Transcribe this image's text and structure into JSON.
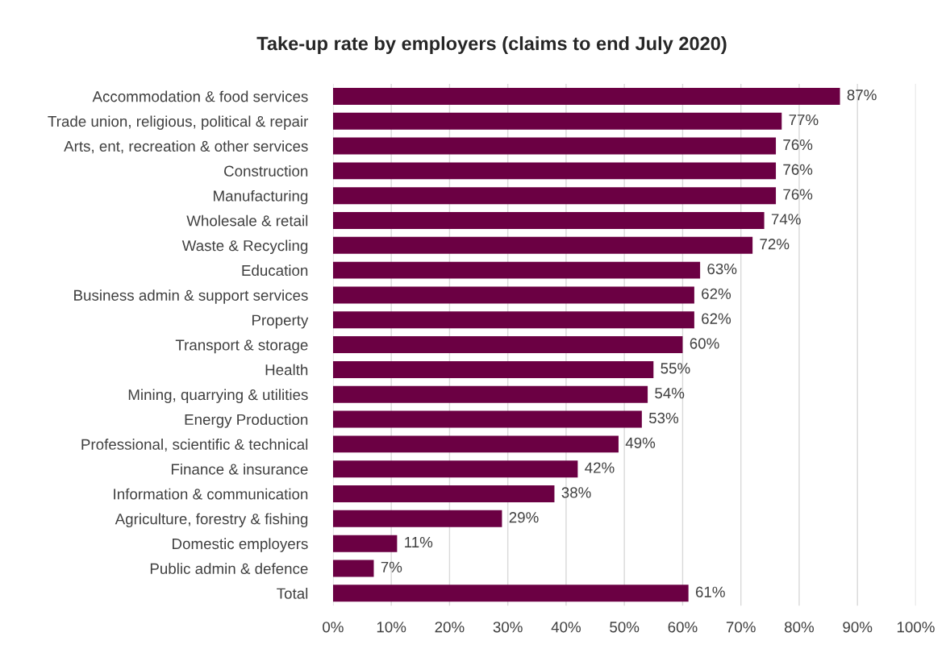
{
  "chart_data": {
    "type": "bar",
    "orientation": "horizontal",
    "title": "Take-up rate by employers (claims to end July 2020)",
    "categories": [
      "Accommodation & food services",
      "Trade union, religious, political & repair",
      "Arts, ent, recreation & other services",
      "Construction",
      "Manufacturing",
      "Wholesale & retail",
      "Waste & Recycling",
      "Education",
      "Business admin & support services",
      "Property",
      "Transport & storage",
      "Health",
      "Mining, quarrying & utilities",
      "Energy Production",
      "Professional, scientific & technical",
      "Finance & insurance",
      "Information & communication",
      "Agriculture, forestry & fishing",
      "Domestic employers",
      "Public admin & defence",
      "Total"
    ],
    "values": [
      87,
      77,
      76,
      76,
      76,
      74,
      72,
      63,
      62,
      62,
      60,
      55,
      54,
      53,
      49,
      42,
      38,
      29,
      11,
      7,
      61
    ],
    "value_labels": [
      "87%",
      "77%",
      "76%",
      "76%",
      "76%",
      "74%",
      "72%",
      "63%",
      "62%",
      "62%",
      "60%",
      "55%",
      "54%",
      "53%",
      "49%",
      "42%",
      "38%",
      "29%",
      "11%",
      "7%",
      "61%"
    ],
    "color": "#6b0043",
    "xlim": [
      0,
      100
    ],
    "xticks": [
      {
        "value": 0,
        "label": "0%"
      },
      {
        "value": 10,
        "label": "10%"
      },
      {
        "value": 20,
        "label": "20%"
      },
      {
        "value": 30,
        "label": "30%"
      },
      {
        "value": 40,
        "label": "40%"
      },
      {
        "value": 50,
        "label": "50%"
      },
      {
        "value": 60,
        "label": "60%"
      },
      {
        "value": 70,
        "label": "70%"
      },
      {
        "value": 80,
        "label": "80%"
      },
      {
        "value": 90,
        "label": "90%"
      },
      {
        "value": 100,
        "label": "100%"
      }
    ],
    "grid": "x"
  }
}
